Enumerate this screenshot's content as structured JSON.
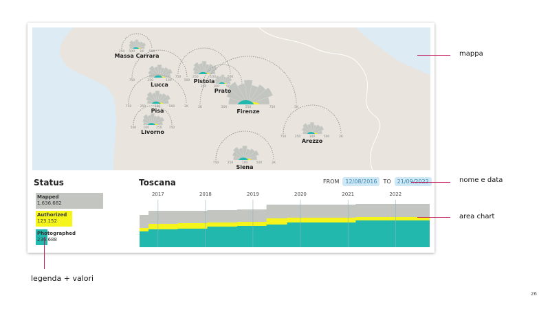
{
  "map": {
    "cities": [
      {
        "name": "Massa Carrara",
        "ticks": [
          "250",
          "500",
          "1K",
          "500"
        ]
      },
      {
        "name": "Lucca",
        "ticks": [
          "750",
          "250",
          "100",
          "500"
        ]
      },
      {
        "name": "Pistoia",
        "ticks": [
          "750",
          "250",
          "100",
          "500"
        ]
      },
      {
        "name": "Prato",
        "ticks": [
          "250",
          "100",
          "500",
          "2K"
        ]
      },
      {
        "name": "Pisa",
        "ticks": [
          "750",
          "250",
          "100",
          "500",
          "2K"
        ]
      },
      {
        "name": "Firenze",
        "ticks": [
          "2K",
          "500",
          "250",
          "750",
          "5K"
        ]
      },
      {
        "name": "Livorno",
        "ticks": [
          "500",
          "100",
          "250",
          "750"
        ]
      },
      {
        "name": "Arezzo",
        "ticks": [
          "750",
          "250",
          "100",
          "500",
          "2K"
        ]
      },
      {
        "name": "Siena",
        "ticks": [
          "750",
          "250",
          "100",
          "500",
          "2K"
        ]
      }
    ],
    "colors": {
      "land": "#e9e4de",
      "sea": "#dcebf4",
      "mapped": "#c3c5c1",
      "authorized": "#f5f51c",
      "photographed": "#22b8ae"
    }
  },
  "status": {
    "title": "Status",
    "items": [
      {
        "label": "Mapped",
        "value": "1.636.682",
        "color": "#c3c5c1"
      },
      {
        "label": "Authorized",
        "value": "123.152",
        "color": "#f5f51c"
      },
      {
        "label": "Photographed",
        "value": "236.688",
        "color": "#22b8ae"
      }
    ]
  },
  "timeline": {
    "region": "Toscana",
    "from_label": "FROM",
    "from_date": "12/08/2016",
    "to_label": "TO",
    "to_date": "21/09/2022"
  },
  "chart_data": {
    "type": "area",
    "stacked": false,
    "x": [
      "2016-08-12",
      "2016-10-20",
      "2017-06-01",
      "2018-01-15",
      "2018-09-01",
      "2019-04-15",
      "2019-09-20",
      "2020-06-01",
      "2021-03-01",
      "2022-09-21"
    ],
    "series": [
      {
        "name": "Mapped",
        "color": "#c3c5c1",
        "values": [
          47,
          53,
          53,
          54,
          55,
          62,
          62,
          62,
          63,
          63
        ]
      },
      {
        "name": "Authorized",
        "color": "#f5f51c",
        "values": [
          28,
          34,
          35,
          36,
          37,
          42,
          43,
          43,
          44,
          44
        ]
      },
      {
        "name": "Photographed",
        "color": "#22b8ae",
        "values": [
          23,
          26,
          27,
          30,
          31,
          33,
          36,
          36,
          39,
          40
        ]
      }
    ],
    "xticks": [
      "2017",
      "2018",
      "2019",
      "2020",
      "2021",
      "2022"
    ],
    "grid": "vertical year lines",
    "legend": "left"
  },
  "annotations": {
    "map": "mappa",
    "name_date": "nome e data",
    "area_chart": "area chart",
    "legend": "legenda + valori"
  },
  "page_number": "26"
}
